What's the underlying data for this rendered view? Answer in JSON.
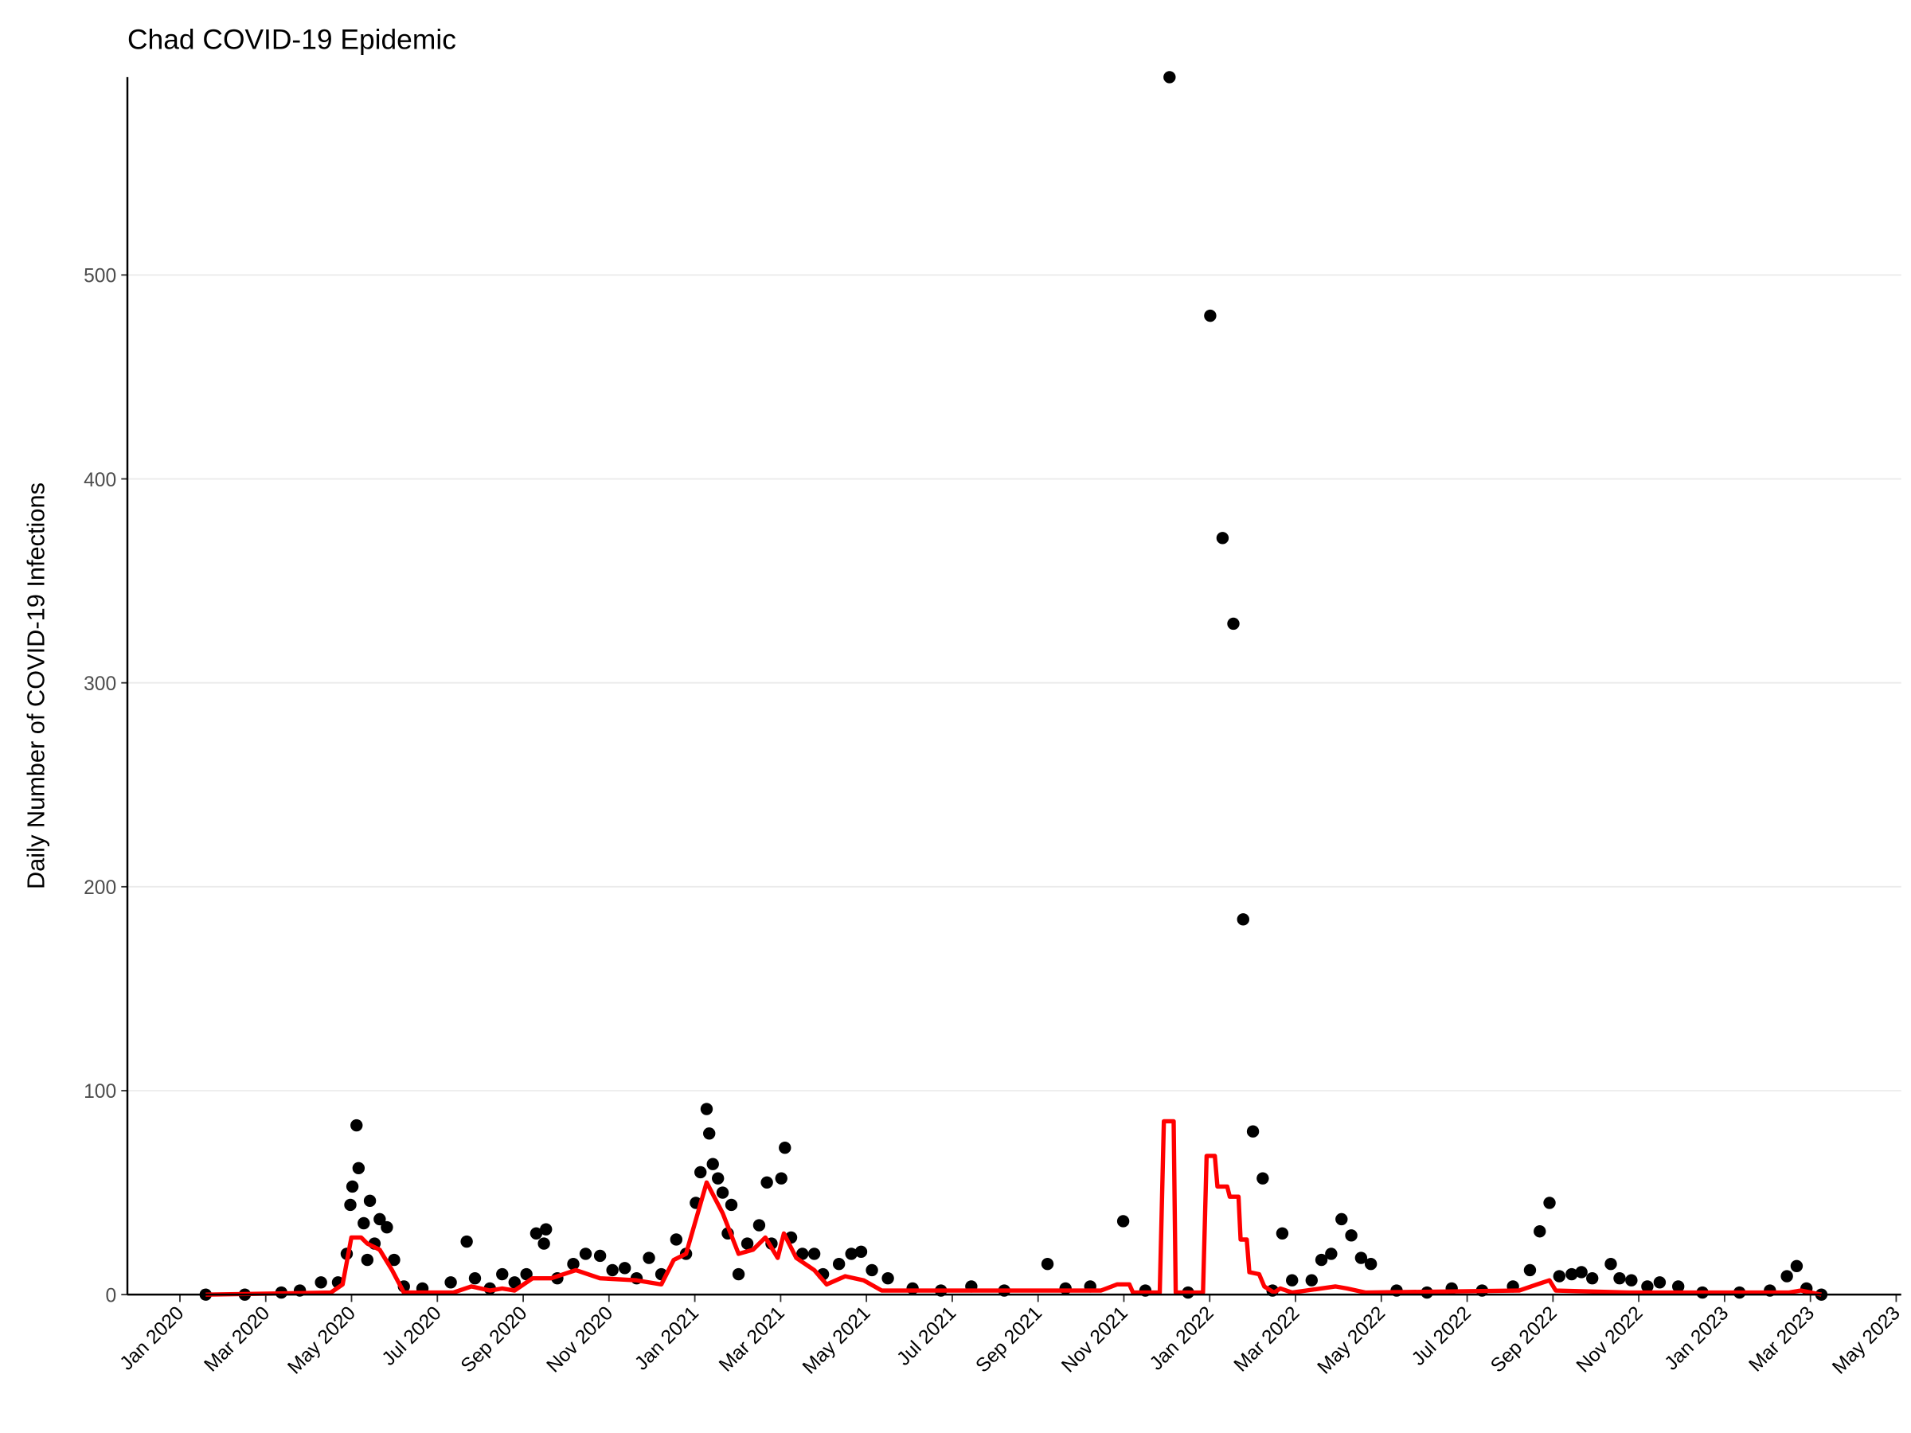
{
  "chart_data": {
    "type": "scatter",
    "title": "Chad COVID-19 Epidemic",
    "y_label": "Daily Number of COVID-19 Infections",
    "xlim": [
      2019.898,
      2023.343
    ],
    "ylim": [
      0,
      597
    ],
    "yticks": [
      0,
      100,
      200,
      300,
      400,
      500
    ],
    "xticks": [
      {
        "value": 2020.0,
        "label": "Jan 2020"
      },
      {
        "value": 2020.1667,
        "label": "Mar 2020"
      },
      {
        "value": 2020.3333,
        "label": "May 2020"
      },
      {
        "value": 2020.5,
        "label": "Jul 2020"
      },
      {
        "value": 2020.6667,
        "label": "Sep 2020"
      },
      {
        "value": 2020.8333,
        "label": "Nov 2020"
      },
      {
        "value": 2021.0,
        "label": "Jan 2021"
      },
      {
        "value": 2021.1667,
        "label": "Mar 2021"
      },
      {
        "value": 2021.3333,
        "label": "May 2021"
      },
      {
        "value": 2021.5,
        "label": "Jul 2021"
      },
      {
        "value": 2021.6667,
        "label": "Sep 2021"
      },
      {
        "value": 2021.8333,
        "label": "Nov 2021"
      },
      {
        "value": 2022.0,
        "label": "Jan 2022"
      },
      {
        "value": 2022.1667,
        "label": "Mar 2022"
      },
      {
        "value": 2022.3333,
        "label": "May 2022"
      },
      {
        "value": 2022.5,
        "label": "Jul 2022"
      },
      {
        "value": 2022.6667,
        "label": "Sep 2022"
      },
      {
        "value": 2022.8333,
        "label": "Nov 2022"
      },
      {
        "value": 2023.0,
        "label": "Jan 2023"
      },
      {
        "value": 2023.1667,
        "label": "Mar 2023"
      },
      {
        "value": 2023.3333,
        "label": "May 2023"
      }
    ],
    "grid": true,
    "series": [
      {
        "type": "scatter",
        "color": "#000000",
        "x": [
          2020.05,
          2020.126,
          2020.197,
          2020.233,
          2020.274,
          2020.307,
          2020.324,
          2020.331,
          2020.335,
          2020.343,
          2020.347,
          2020.357,
          2020.364,
          2020.369,
          2020.378,
          2020.388,
          2020.402,
          2020.416,
          2020.435,
          2020.471,
          2020.526,
          2020.557,
          2020.573,
          2020.602,
          2020.626,
          2020.65,
          2020.673,
          2020.692,
          2020.711,
          2020.707,
          2020.733,
          2020.764,
          2020.788,
          2020.816,
          2020.84,
          2020.864,
          2020.887,
          2020.911,
          2020.935,
          2020.964,
          2020.983,
          2021.002,
          2021.011,
          2021.023,
          2021.028,
          2021.035,
          2021.045,
          2021.054,
          2021.064,
          2021.071,
          2021.085,
          2021.102,
          2021.125,
          2021.14,
          2021.149,
          2021.168,
          2021.175,
          2021.187,
          2021.209,
          2021.232,
          2021.249,
          2021.28,
          2021.304,
          2021.323,
          2021.344,
          2021.375,
          2021.423,
          2021.478,
          2021.537,
          2021.601,
          2021.685,
          2021.72,
          2021.768,
          2021.832,
          2021.875,
          2021.922,
          2021.958,
          2022.001,
          2022.025,
          2022.046,
          2022.065,
          2022.084,
          2022.103,
          2022.122,
          2022.141,
          2022.16,
          2022.198,
          2022.217,
          2022.236,
          2022.256,
          2022.275,
          2022.294,
          2022.313,
          2022.363,
          2022.422,
          2022.47,
          2022.529,
          2022.589,
          2022.622,
          2022.641,
          2022.66,
          2022.679,
          2022.703,
          2022.722,
          2022.743,
          2022.779,
          2022.796,
          2022.819,
          2022.85,
          2022.874,
          2022.91,
          2022.957,
          2023.029,
          2023.088,
          2023.121,
          2023.14,
          2023.159,
          2023.188
        ],
        "values": [
          0,
          0,
          1,
          2,
          6,
          6,
          20,
          44,
          53,
          83,
          62,
          35,
          17,
          46,
          25,
          37,
          33,
          17,
          4,
          3,
          6,
          26,
          8,
          3,
          10,
          6,
          10,
          30,
          32,
          25,
          8,
          15,
          20,
          19,
          12,
          13,
          8,
          18,
          10,
          27,
          20,
          45,
          60,
          91,
          79,
          64,
          57,
          50,
          30,
          44,
          10,
          25,
          34,
          55,
          25,
          57,
          72,
          28,
          20,
          20,
          10,
          15,
          20,
          21,
          12,
          8,
          3,
          2,
          4,
          2,
          15,
          3,
          4,
          36,
          2,
          597,
          1,
          480,
          371,
          329,
          184,
          80,
          57,
          2,
          30,
          7,
          7,
          17,
          20,
          37,
          29,
          18,
          15,
          2,
          1,
          3,
          2,
          4,
          12,
          31,
          45,
          9,
          10,
          11,
          8,
          15,
          8,
          7,
          4,
          6,
          4,
          1,
          1,
          2,
          9,
          14,
          3,
          0
        ]
      },
      {
        "type": "line",
        "color": "#ff0000",
        "x": [
          2020.05,
          2020.293,
          2020.316,
          2020.333,
          2020.352,
          2020.364,
          2020.388,
          2020.412,
          2020.435,
          2020.531,
          2020.566,
          2020.602,
          2020.626,
          2020.65,
          2020.685,
          2020.721,
          2020.769,
          2020.816,
          2020.887,
          2020.935,
          2020.959,
          2020.983,
          2021.023,
          2021.054,
          2021.085,
          2021.113,
          2021.137,
          2021.161,
          2021.173,
          2021.197,
          2021.232,
          2021.256,
          2021.292,
          2021.328,
          2021.363,
          2021.554,
          2021.789,
          2021.82,
          2021.844,
          2021.851,
          2021.903,
          2021.911,
          2021.93,
          2021.934,
          2021.987,
          2021.994,
          2022.01,
          2022.015,
          2022.034,
          2022.039,
          2022.056,
          2022.06,
          2022.072,
          2022.077,
          2022.096,
          2022.106,
          2022.125,
          2022.137,
          2022.16,
          2022.244,
          2022.267,
          2022.303,
          2022.601,
          2022.636,
          2022.66,
          2022.672,
          2022.815,
          2023.124,
          2023.148,
          2023.188
        ],
        "values": [
          0,
          1,
          5,
          28,
          28,
          25,
          22,
          12,
          1,
          1,
          4,
          2,
          3,
          2,
          8,
          8,
          12,
          8,
          7,
          5,
          17,
          20,
          55,
          40,
          20,
          22,
          28,
          18,
          30,
          18,
          12,
          5,
          9,
          7,
          2,
          2,
          2,
          5,
          5,
          1,
          1,
          85,
          85,
          1,
          1,
          68,
          68,
          53,
          53,
          48,
          48,
          27,
          27,
          11,
          10,
          4,
          1,
          3,
          1,
          4,
          3,
          1,
          2,
          5,
          7,
          2,
          1,
          1,
          2,
          0
        ]
      }
    ]
  }
}
